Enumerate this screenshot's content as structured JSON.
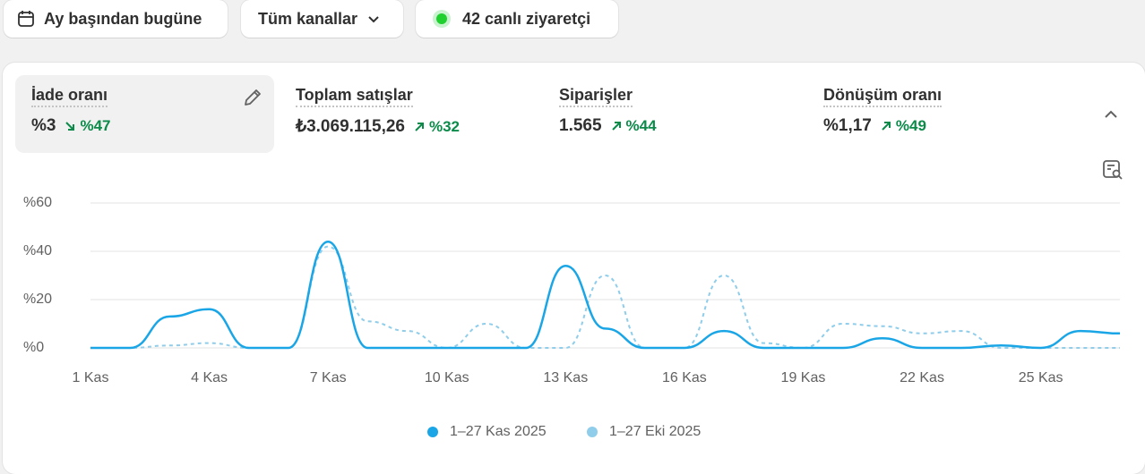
{
  "header": {
    "date_range": "Ay başından bugüne",
    "channels": "Tüm kanallar",
    "live_visitors": "42 canlı ziyaretçi"
  },
  "metrics": [
    {
      "label": "İade oranı",
      "value": "%3",
      "change": "%47"
    },
    {
      "label": "Toplam satışlar",
      "value": "₺3.069.115,26",
      "change": "%32"
    },
    {
      "label": "Siparişler",
      "value": "1.565",
      "change": "%44"
    },
    {
      "label": "Dönüşüm oranı",
      "value": "%1,17",
      "change": "%49"
    }
  ],
  "chart_data": {
    "type": "line",
    "categories": [
      "1 Kas",
      null,
      null,
      "4 Kas",
      null,
      null,
      "7 Kas",
      null,
      null,
      "10 Kas",
      null,
      null,
      "13 Kas",
      null,
      null,
      "16 Kas",
      null,
      null,
      "19 Kas",
      null,
      null,
      "22 Kas",
      null,
      null,
      "25 Kas",
      null,
      null
    ],
    "series": [
      {
        "name": "1–27 Kas 2025",
        "color": "#1aa6e6",
        "values": [
          0,
          0,
          13,
          16,
          0,
          0,
          44,
          0,
          0,
          0,
          0,
          0,
          34,
          8,
          0,
          0,
          7,
          0,
          0,
          0,
          4,
          0,
          0,
          1,
          0,
          7,
          6
        ]
      },
      {
        "name": "1–27 Eki 2025",
        "color": "#8fcdea",
        "values": [
          0,
          0,
          1,
          2,
          0,
          0,
          42,
          11,
          7,
          0,
          10,
          0,
          0,
          30,
          0,
          0,
          30,
          2,
          0,
          10,
          9,
          6,
          7,
          0,
          0,
          0,
          0
        ]
      }
    ],
    "ylim": [
      0,
      60
    ],
    "yticks": [
      {
        "value": 0,
        "label": "%0"
      },
      {
        "value": 20,
        "label": "%20"
      },
      {
        "value": 40,
        "label": "%40"
      },
      {
        "value": 60,
        "label": "%60"
      }
    ],
    "grid": true
  }
}
